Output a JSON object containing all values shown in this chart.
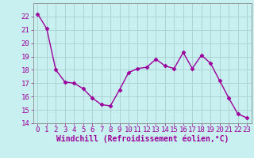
{
  "x": [
    0,
    1,
    2,
    3,
    4,
    5,
    6,
    7,
    8,
    9,
    10,
    11,
    12,
    13,
    14,
    15,
    16,
    17,
    18,
    19,
    20,
    21,
    22,
    23
  ],
  "y": [
    22.2,
    21.1,
    18.0,
    17.1,
    17.0,
    16.6,
    15.9,
    15.4,
    15.3,
    16.5,
    17.8,
    18.1,
    18.2,
    18.8,
    18.3,
    18.1,
    19.3,
    18.1,
    19.1,
    18.5,
    17.2,
    15.9,
    14.7,
    14.4
  ],
  "line_color": "#9b009b",
  "marker": "D",
  "marker_size": 2.5,
  "bg_color": "#c8f0f0",
  "grid_color": "#a8cece",
  "xlabel": "Windchill (Refroidissement éolien,°C)",
  "ylim": [
    14,
    23
  ],
  "xlim": [
    -0.5,
    23.5
  ],
  "yticks": [
    14,
    15,
    16,
    17,
    18,
    19,
    20,
    21,
    22
  ],
  "xticks": [
    0,
    1,
    2,
    3,
    4,
    5,
    6,
    7,
    8,
    9,
    10,
    11,
    12,
    13,
    14,
    15,
    16,
    17,
    18,
    19,
    20,
    21,
    22,
    23
  ],
  "tick_fontsize": 6.5,
  "xlabel_fontsize": 7.0,
  "line_width": 1.0
}
